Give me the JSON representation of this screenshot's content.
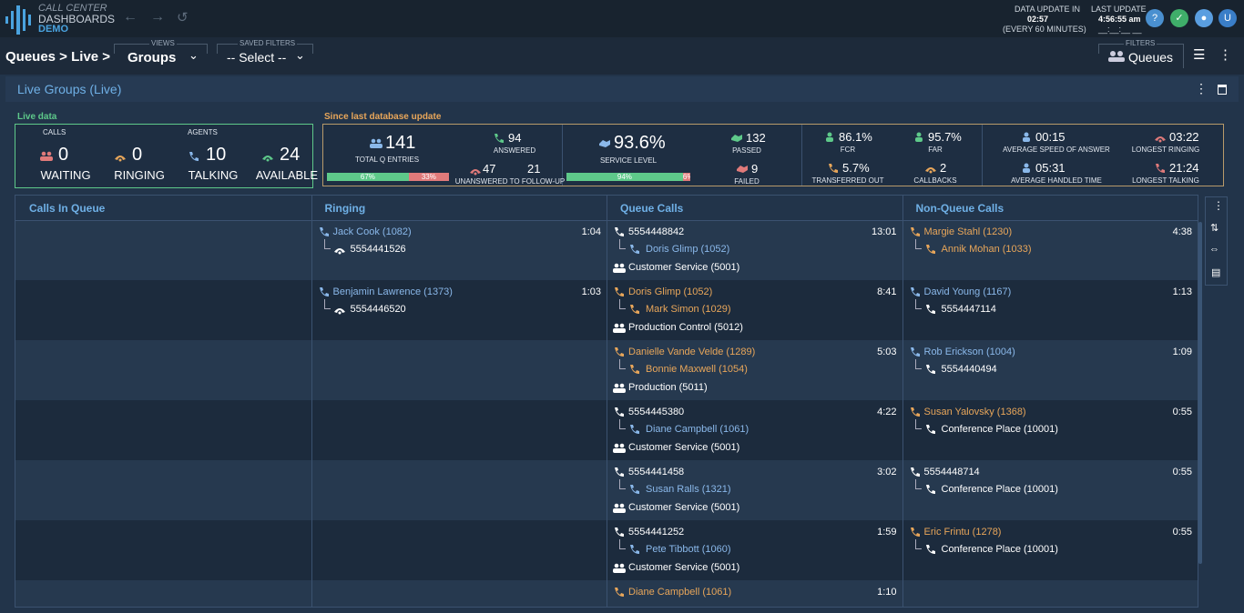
{
  "header": {
    "brand": [
      "CALL CENTER",
      "DASHBOARDS",
      "DEMO"
    ],
    "data_update": {
      "label": "DATA UPDATE IN",
      "value": "02:57",
      "note": "(EVERY 60 MINUTES)"
    },
    "last_update": {
      "label": "LAST UPDATE",
      "time": "4:56:55 am",
      "date": "__:__:__ __"
    },
    "user": "U"
  },
  "toolbar": {
    "breadcrumb": "Queues > Live >",
    "views": {
      "label": "VIEWS",
      "value": "Groups"
    },
    "saved_filters": {
      "label": "SAVED FILTERS",
      "value": "-- Select --"
    },
    "filters": {
      "label": "FILTERS",
      "value": "Queues"
    }
  },
  "panel": {
    "title": "Live Groups (Live)"
  },
  "live_data": {
    "label": "Live data",
    "calls_label": "CALLS",
    "agents_label": "AGENTS",
    "stats": [
      {
        "value": "0",
        "label": "WAITING",
        "color": "#e07a7a"
      },
      {
        "value": "0",
        "label": "RINGING",
        "color": "#e8a65a"
      },
      {
        "value": "10",
        "label": "TALKING",
        "color": "#8ab8ea"
      },
      {
        "value": "24",
        "label": "AVAILABLE",
        "color": "#5ec98a"
      }
    ]
  },
  "since_update": {
    "label": "Since last database update",
    "total": {
      "value": "141",
      "label": "TOTAL Q ENTRIES",
      "bar": [
        {
          "value": 67,
          "label": "67%"
        },
        {
          "value": 33,
          "label": "33%"
        }
      ]
    },
    "answered": {
      "value": "94",
      "label": "ANSWERED"
    },
    "unanswered": {
      "value": "47",
      "follow_up": "21",
      "label": "UNANSWERED TO FOLLOW-UP"
    },
    "service_level": {
      "value": "93.6%",
      "label": "SERVICE LEVEL",
      "bar": [
        {
          "value": 94,
          "label": "94%"
        },
        {
          "value": 6,
          "label": "6%"
        }
      ]
    },
    "passed": {
      "value": "132",
      "label": "PASSED"
    },
    "failed": {
      "value": "9",
      "label": "FAILED"
    },
    "fcr": {
      "value": "86.1%",
      "label": "FCR"
    },
    "far": {
      "value": "95.7%",
      "label": "FAR"
    },
    "transferred_out": {
      "value": "5.7%",
      "label": "TRANSFERRED OUT"
    },
    "callbacks": {
      "value": "2",
      "label": "CALLBACKS"
    },
    "asa": {
      "value": "00:15",
      "label": "AVERAGE SPEED OF ANSWER"
    },
    "longest_ringing": {
      "value": "03:22",
      "label": "LONGEST RINGING"
    },
    "aht": {
      "value": "05:31",
      "label": "AVERAGE HANDLED TIME"
    },
    "longest_talking": {
      "value": "21:24",
      "label": "LONGEST TALKING"
    }
  },
  "grid": {
    "columns": [
      {
        "header": "Calls In Queue",
        "cells": []
      },
      {
        "header": "Ringing",
        "cells": [
          {
            "caller": {
              "text": "Jack Cook (1082)",
              "color": "#8ab8ea"
            },
            "time": "1:04",
            "target": {
              "text": "5554441526",
              "color": "#ffffff"
            }
          },
          {
            "caller": {
              "text": "Benjamin Lawrence (1373)",
              "color": "#8ab8ea"
            },
            "time": "1:03",
            "target": {
              "text": "5554446520",
              "color": "#ffffff"
            }
          }
        ]
      },
      {
        "header": "Queue Calls",
        "cells": [
          {
            "caller": {
              "text": "5554448842",
              "color": "#ffffff"
            },
            "time": "13:01",
            "target": {
              "text": "Doris Glimp (1052)",
              "color": "#8ab8ea"
            },
            "group": "Customer Service (5001)"
          },
          {
            "caller": {
              "text": "Doris Glimp (1052)",
              "color": "#e8a65a"
            },
            "time": "8:41",
            "target": {
              "text": "Mark Simon (1029)",
              "color": "#e8a65a"
            },
            "group": "Production Control (5012)"
          },
          {
            "caller": {
              "text": "Danielle Vande Velde (1289)",
              "color": "#e8a65a"
            },
            "time": "5:03",
            "target": {
              "text": "Bonnie Maxwell (1054)",
              "color": "#e8a65a"
            },
            "group": "Production (5011)"
          },
          {
            "caller": {
              "text": "5554445380",
              "color": "#ffffff"
            },
            "time": "4:22",
            "target": {
              "text": "Diane Campbell (1061)",
              "color": "#8ab8ea"
            },
            "group": "Customer Service (5001)"
          },
          {
            "caller": {
              "text": "5554441458",
              "color": "#ffffff"
            },
            "time": "3:02",
            "target": {
              "text": "Susan Ralls (1321)",
              "color": "#8ab8ea"
            },
            "group": "Customer Service (5001)"
          },
          {
            "caller": {
              "text": "5554441252",
              "color": "#ffffff"
            },
            "time": "1:59",
            "target": {
              "text": "Pete Tibbott (1060)",
              "color": "#8ab8ea"
            },
            "group": "Customer Service (5001)"
          },
          {
            "caller": {
              "text": "Diane Campbell (1061)",
              "color": "#e8a65a"
            },
            "time": "1:10"
          }
        ]
      },
      {
        "header": "Non-Queue Calls",
        "cells": [
          {
            "caller": {
              "text": "Margie Stahl (1230)",
              "color": "#e8a65a"
            },
            "time": "4:38",
            "target": {
              "text": "Annik Mohan (1033)",
              "color": "#e8a65a"
            }
          },
          {
            "caller": {
              "text": "David Young (1167)",
              "color": "#8ab8ea"
            },
            "time": "1:13",
            "target": {
              "text": "5554447114",
              "color": "#ffffff"
            }
          },
          {
            "caller": {
              "text": "Rob Erickson (1004)",
              "color": "#8ab8ea"
            },
            "time": "1:09",
            "target": {
              "text": "5554440494",
              "color": "#ffffff"
            }
          },
          {
            "caller": {
              "text": "Susan Yalovsky (1368)",
              "color": "#e8a65a"
            },
            "time": "0:55",
            "target": {
              "text": "Conference Place (10001)",
              "color": "#ffffff"
            }
          },
          {
            "caller": {
              "text": "5554448714",
              "color": "#ffffff"
            },
            "time": "0:55",
            "target": {
              "text": "Conference Place (10001)",
              "color": "#ffffff"
            }
          },
          {
            "caller": {
              "text": "Eric Frintu (1278)",
              "color": "#e8a65a"
            },
            "time": "0:55",
            "target": {
              "text": "Conference Place (10001)",
              "color": "#ffffff"
            }
          }
        ]
      }
    ]
  }
}
